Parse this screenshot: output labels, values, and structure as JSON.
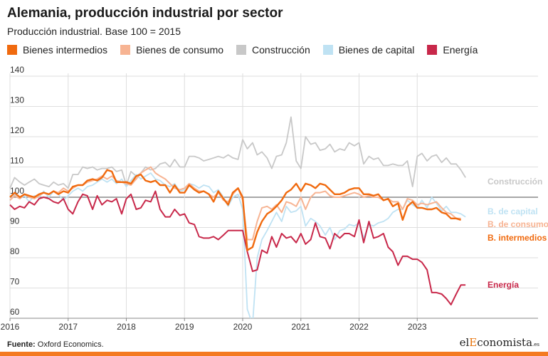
{
  "header": {
    "title": "Alemania, producción industrial por sector",
    "subtitle": "Producción industrial. Base 100 = 2015"
  },
  "footer": {
    "source_label": "Fuente:",
    "source_text": "Oxford Economics.",
    "brand_pre": "el",
    "brand_accent": "E",
    "brand_post": "conomista",
    "brand_suffix": ".es"
  },
  "chart_data": {
    "type": "line",
    "ylim": [
      60,
      140
    ],
    "yticks": [
      60,
      70,
      80,
      90,
      100,
      110,
      120,
      130,
      140
    ],
    "xlim": [
      2016,
      2024
    ],
    "xticks": [
      {
        "value": 2016,
        "label": "2016"
      },
      {
        "value": 2017,
        "label": "2017"
      },
      {
        "value": 2018,
        "label": "2018"
      },
      {
        "value": 2019,
        "label": "2019"
      },
      {
        "value": 2020,
        "label": "2020"
      },
      {
        "value": 2021,
        "label": "2021"
      },
      {
        "value": 2022,
        "label": "2022"
      },
      {
        "value": 2023,
        "label": "2023"
      }
    ],
    "reference_line": 100,
    "grid": true,
    "series": [
      {
        "name": "Bienes intermedios",
        "label": "B. intermedios",
        "color": "#f06a0f",
        "x": [
          2016.0,
          2016.08,
          2016.17,
          2016.25,
          2016.33,
          2016.42,
          2016.5,
          2016.58,
          2016.67,
          2016.75,
          2016.83,
          2016.92,
          2017.0,
          2017.08,
          2017.17,
          2017.25,
          2017.33,
          2017.42,
          2017.5,
          2017.58,
          2017.67,
          2017.75,
          2017.83,
          2017.92,
          2018.0,
          2018.08,
          2018.17,
          2018.25,
          2018.33,
          2018.42,
          2018.5,
          2018.58,
          2018.67,
          2018.75,
          2018.83,
          2018.92,
          2019.0,
          2019.08,
          2019.17,
          2019.25,
          2019.33,
          2019.42,
          2019.5,
          2019.58,
          2019.67,
          2019.75,
          2019.83,
          2019.92,
          2020.0,
          2020.08,
          2020.17,
          2020.25,
          2020.33,
          2020.42,
          2020.5,
          2020.58,
          2020.67,
          2020.75,
          2020.83,
          2020.92,
          2021.0,
          2021.08,
          2021.17,
          2021.25,
          2021.33,
          2021.42,
          2021.5,
          2021.58,
          2021.67,
          2021.75,
          2021.83,
          2021.92,
          2022.0,
          2022.08,
          2022.17,
          2022.25,
          2022.33,
          2022.42,
          2022.5,
          2022.58,
          2022.67,
          2022.75,
          2022.83,
          2022.92,
          2023.0,
          2023.08,
          2023.17,
          2023.25,
          2023.33,
          2023.42,
          2023.5,
          2023.58,
          2023.67,
          2023.75
        ],
        "values": [
          100.0,
          101.5,
          100.0,
          101.0,
          100.5,
          100.0,
          101.0,
          101.5,
          101.0,
          102.0,
          101.0,
          102.0,
          101.5,
          103.5,
          104.0,
          104.0,
          105.5,
          106.0,
          105.5,
          106.5,
          109.0,
          108.5,
          105.0,
          105.0,
          105.0,
          104.5,
          107.0,
          107.5,
          105.5,
          105.0,
          105.5,
          104.0,
          104.0,
          101.5,
          104.0,
          101.5,
          101.5,
          104.0,
          102.5,
          101.5,
          102.0,
          101.0,
          98.5,
          102.0,
          99.5,
          97.5,
          101.5,
          103.0,
          100.0,
          82.5,
          83.5,
          88.5,
          92.0,
          94.5,
          95.5,
          97.0,
          99.0,
          101.5,
          102.5,
          104.5,
          102.0,
          104.5,
          104.0,
          103.0,
          104.5,
          104.0,
          102.5,
          101.0,
          101.0,
          101.5,
          102.5,
          103.0,
          103.0,
          101.0,
          101.0,
          100.5,
          101.0,
          99.0,
          99.5,
          97.0,
          98.0,
          92.5,
          97.0,
          98.5,
          96.5,
          96.5,
          96.0,
          96.0,
          96.5,
          95.0,
          94.5,
          93.0,
          93.0,
          92.5
        ]
      },
      {
        "name": "Bienes de consumo",
        "label": "B. de consumo",
        "color": "#f7b493",
        "x": [
          2016.0,
          2016.08,
          2016.17,
          2016.25,
          2016.33,
          2016.42,
          2016.5,
          2016.58,
          2016.67,
          2016.75,
          2016.83,
          2016.92,
          2017.0,
          2017.08,
          2017.17,
          2017.25,
          2017.33,
          2017.42,
          2017.5,
          2017.58,
          2017.67,
          2017.75,
          2017.83,
          2017.92,
          2018.0,
          2018.08,
          2018.17,
          2018.25,
          2018.33,
          2018.42,
          2018.5,
          2018.58,
          2018.67,
          2018.75,
          2018.83,
          2018.92,
          2019.0,
          2019.08,
          2019.17,
          2019.25,
          2019.33,
          2019.42,
          2019.5,
          2019.58,
          2019.67,
          2019.75,
          2019.83,
          2019.92,
          2020.0,
          2020.08,
          2020.17,
          2020.25,
          2020.33,
          2020.42,
          2020.5,
          2020.58,
          2020.67,
          2020.75,
          2020.83,
          2020.92,
          2021.0,
          2021.08,
          2021.17,
          2021.25,
          2021.33,
          2021.42,
          2021.5,
          2021.58,
          2021.67,
          2021.75,
          2021.83,
          2021.92,
          2022.0,
          2022.08,
          2022.17,
          2022.25,
          2022.33,
          2022.42,
          2022.5,
          2022.58,
          2022.67,
          2022.75,
          2022.83,
          2022.92,
          2023.0,
          2023.08,
          2023.17,
          2023.25,
          2023.33,
          2023.42,
          2023.5,
          2023.58,
          2023.67,
          2023.75
        ],
        "values": [
          99.0,
          100.5,
          99.5,
          101.0,
          100.0,
          99.5,
          100.5,
          101.5,
          101.0,
          102.0,
          101.5,
          103.0,
          102.0,
          103.0,
          104.0,
          104.0,
          105.0,
          105.5,
          106.0,
          107.0,
          106.0,
          107.0,
          105.5,
          105.0,
          104.5,
          104.0,
          106.0,
          108.0,
          109.0,
          110.0,
          108.0,
          107.0,
          106.0,
          104.5,
          103.0,
          102.5,
          103.0,
          104.5,
          103.0,
          102.0,
          102.0,
          101.0,
          100.0,
          101.5,
          99.0,
          98.5,
          101.0,
          103.0,
          99.0,
          86.0,
          86.0,
          92.0,
          96.5,
          97.0,
          96.0,
          97.5,
          95.0,
          98.5,
          98.0,
          97.0,
          100.0,
          96.0,
          100.0,
          101.5,
          101.5,
          102.0,
          100.5,
          100.0,
          100.0,
          100.5,
          101.0,
          101.5,
          101.0,
          100.0,
          100.5,
          100.0,
          100.0,
          99.0,
          99.5,
          98.5,
          98.5,
          96.0,
          99.5,
          99.0,
          97.5,
          98.0,
          97.5,
          98.0,
          98.5,
          96.5,
          95.0,
          94.5,
          93.0,
          93.0
        ]
      },
      {
        "name": "Construcción",
        "label": "Construcción",
        "color": "#c8c8c8",
        "x": [
          2016.0,
          2016.08,
          2016.17,
          2016.25,
          2016.33,
          2016.42,
          2016.5,
          2016.58,
          2016.67,
          2016.75,
          2016.83,
          2016.92,
          2017.0,
          2017.08,
          2017.17,
          2017.25,
          2017.33,
          2017.42,
          2017.5,
          2017.58,
          2017.67,
          2017.75,
          2017.83,
          2017.92,
          2018.0,
          2018.08,
          2018.17,
          2018.25,
          2018.33,
          2018.42,
          2018.5,
          2018.58,
          2018.67,
          2018.75,
          2018.83,
          2018.92,
          2019.0,
          2019.08,
          2019.17,
          2019.25,
          2019.33,
          2019.42,
          2019.5,
          2019.58,
          2019.67,
          2019.75,
          2019.83,
          2019.92,
          2020.0,
          2020.08,
          2020.17,
          2020.25,
          2020.33,
          2020.42,
          2020.5,
          2020.58,
          2020.67,
          2020.75,
          2020.83,
          2020.92,
          2021.0,
          2021.08,
          2021.17,
          2021.25,
          2021.33,
          2021.42,
          2021.5,
          2021.58,
          2021.67,
          2021.75,
          2021.83,
          2021.92,
          2022.0,
          2022.08,
          2022.17,
          2022.25,
          2022.33,
          2022.42,
          2022.5,
          2022.58,
          2022.67,
          2022.75,
          2022.83,
          2022.92,
          2023.0,
          2023.08,
          2023.17,
          2023.25,
          2023.33,
          2023.42,
          2023.5,
          2023.58,
          2023.67,
          2023.75,
          2023.83
        ],
        "values": [
          103.0,
          106.5,
          105.0,
          104.0,
          105.0,
          106.0,
          104.5,
          104.0,
          103.5,
          105.0,
          104.0,
          104.5,
          103.0,
          107.5,
          107.5,
          110.0,
          109.5,
          110.0,
          109.0,
          109.5,
          109.5,
          110.0,
          108.5,
          109.0,
          104.0,
          108.5,
          107.0,
          108.0,
          110.0,
          109.0,
          109.5,
          111.0,
          111.5,
          110.0,
          112.5,
          110.0,
          110.0,
          113.5,
          113.5,
          113.0,
          112.0,
          112.5,
          113.0,
          113.5,
          113.0,
          114.0,
          113.0,
          112.5,
          119.0,
          116.0,
          118.0,
          114.0,
          115.0,
          113.0,
          109.5,
          113.5,
          114.0,
          118.0,
          126.5,
          112.0,
          109.5,
          120.0,
          117.5,
          118.0,
          115.5,
          116.0,
          117.5,
          115.0,
          116.0,
          115.5,
          118.0,
          117.0,
          118.0,
          111.0,
          113.5,
          112.5,
          113.0,
          110.5,
          110.5,
          111.0,
          110.5,
          110.5,
          112.0,
          103.5,
          113.5,
          114.5,
          112.0,
          113.5,
          114.0,
          111.5,
          113.0,
          111.0,
          111.0,
          109.0,
          106.5
        ]
      },
      {
        "name": "Bienes de capital",
        "label": "B. de capital",
        "color": "#bfe2f3",
        "x": [
          2016.0,
          2016.08,
          2016.17,
          2016.25,
          2016.33,
          2016.42,
          2016.5,
          2016.58,
          2016.67,
          2016.75,
          2016.83,
          2016.92,
          2017.0,
          2017.08,
          2017.17,
          2017.25,
          2017.33,
          2017.42,
          2017.5,
          2017.58,
          2017.67,
          2017.75,
          2017.83,
          2017.92,
          2018.0,
          2018.08,
          2018.17,
          2018.25,
          2018.33,
          2018.42,
          2018.5,
          2018.58,
          2018.67,
          2018.75,
          2018.83,
          2018.92,
          2019.0,
          2019.08,
          2019.17,
          2019.25,
          2019.33,
          2019.42,
          2019.5,
          2019.58,
          2019.67,
          2019.75,
          2019.83,
          2019.92,
          2020.0,
          2020.08,
          2020.17,
          2020.25,
          2020.33,
          2020.42,
          2020.5,
          2020.58,
          2020.67,
          2020.75,
          2020.83,
          2020.92,
          2021.0,
          2021.08,
          2021.17,
          2021.25,
          2021.33,
          2021.42,
          2021.5,
          2021.58,
          2021.67,
          2021.75,
          2021.83,
          2021.92,
          2022.0,
          2022.08,
          2022.17,
          2022.25,
          2022.33,
          2022.42,
          2022.5,
          2022.58,
          2022.67,
          2022.75,
          2022.83,
          2022.92,
          2023.0,
          2023.08,
          2023.17,
          2023.25,
          2023.33,
          2023.42,
          2023.5,
          2023.58,
          2023.67,
          2023.75,
          2023.83
        ],
        "values": [
          99.0,
          101.0,
          99.5,
          100.5,
          98.5,
          100.5,
          100.0,
          102.0,
          100.0,
          102.0,
          101.0,
          99.0,
          100.5,
          102.0,
          103.0,
          102.0,
          103.5,
          104.0,
          105.0,
          106.0,
          105.0,
          106.0,
          104.5,
          106.0,
          103.5,
          105.5,
          107.5,
          106.0,
          107.0,
          108.0,
          106.0,
          105.5,
          104.0,
          103.5,
          104.5,
          102.0,
          102.5,
          104.5,
          104.0,
          103.0,
          104.0,
          103.5,
          101.5,
          102.5,
          100.0,
          97.0,
          100.0,
          101.0,
          96.0,
          63.0,
          58.0,
          80.0,
          86.0,
          89.0,
          92.0,
          95.0,
          92.0,
          97.0,
          95.0,
          95.5,
          97.0,
          90.5,
          93.0,
          92.0,
          90.5,
          87.5,
          90.0,
          86.0,
          89.0,
          89.5,
          91.0,
          90.5,
          91.5,
          86.5,
          91.0,
          90.5,
          91.5,
          92.0,
          93.0,
          95.0,
          96.0,
          96.0,
          99.0,
          97.5,
          96.5,
          99.0,
          96.5,
          100.0,
          98.0,
          95.5,
          97.0,
          95.0,
          95.0,
          94.5,
          93.5
        ]
      },
      {
        "name": "Energía",
        "label": "Energía",
        "color": "#c8284a",
        "x": [
          2016.0,
          2016.08,
          2016.17,
          2016.25,
          2016.33,
          2016.42,
          2016.5,
          2016.58,
          2016.67,
          2016.75,
          2016.83,
          2016.92,
          2017.0,
          2017.08,
          2017.17,
          2017.25,
          2017.33,
          2017.42,
          2017.5,
          2017.58,
          2017.67,
          2017.75,
          2017.83,
          2017.92,
          2018.0,
          2018.08,
          2018.17,
          2018.25,
          2018.33,
          2018.42,
          2018.5,
          2018.58,
          2018.67,
          2018.75,
          2018.83,
          2018.92,
          2019.0,
          2019.08,
          2019.17,
          2019.25,
          2019.33,
          2019.42,
          2019.5,
          2019.58,
          2019.67,
          2019.75,
          2019.83,
          2019.92,
          2020.0,
          2020.08,
          2020.17,
          2020.25,
          2020.33,
          2020.42,
          2020.5,
          2020.58,
          2020.67,
          2020.75,
          2020.83,
          2020.92,
          2021.0,
          2021.08,
          2021.17,
          2021.25,
          2021.33,
          2021.42,
          2021.5,
          2021.58,
          2021.67,
          2021.75,
          2021.83,
          2021.92,
          2022.0,
          2022.08,
          2022.17,
          2022.25,
          2022.33,
          2022.42,
          2022.5,
          2022.58,
          2022.67,
          2022.75,
          2022.83,
          2022.92,
          2023.0,
          2023.08,
          2023.17,
          2023.25,
          2023.33,
          2023.42,
          2023.5,
          2023.58,
          2023.67,
          2023.75,
          2023.83
        ],
        "values": [
          97.5,
          96.0,
          97.0,
          96.5,
          98.5,
          97.5,
          99.5,
          100.0,
          99.5,
          98.5,
          98.0,
          99.5,
          96.0,
          94.5,
          98.5,
          101.0,
          100.5,
          96.0,
          100.5,
          97.5,
          99.0,
          98.5,
          99.5,
          94.5,
          99.5,
          101.0,
          96.0,
          96.5,
          99.0,
          98.5,
          102.0,
          96.0,
          93.5,
          93.5,
          96.0,
          94.0,
          94.5,
          91.5,
          91.0,
          87.0,
          86.5,
          86.5,
          87.0,
          86.0,
          87.5,
          89.0,
          89.0,
          89.0,
          89.0,
          82.0,
          75.5,
          76.0,
          82.5,
          81.5,
          87.0,
          83.5,
          88.0,
          86.5,
          87.0,
          85.0,
          88.0,
          84.5,
          86.0,
          91.5,
          87.0,
          86.5,
          83.0,
          88.0,
          86.5,
          88.0,
          88.0,
          87.0,
          92.5,
          85.0,
          92.0,
          86.5,
          87.0,
          88.0,
          83.5,
          82.0,
          77.5,
          80.5,
          80.5,
          79.5,
          79.5,
          78.5,
          76.0,
          68.5,
          68.5,
          68.0,
          66.5,
          64.5,
          68.0,
          71.0,
          71.0
        ]
      }
    ],
    "legend_position": "top"
  }
}
